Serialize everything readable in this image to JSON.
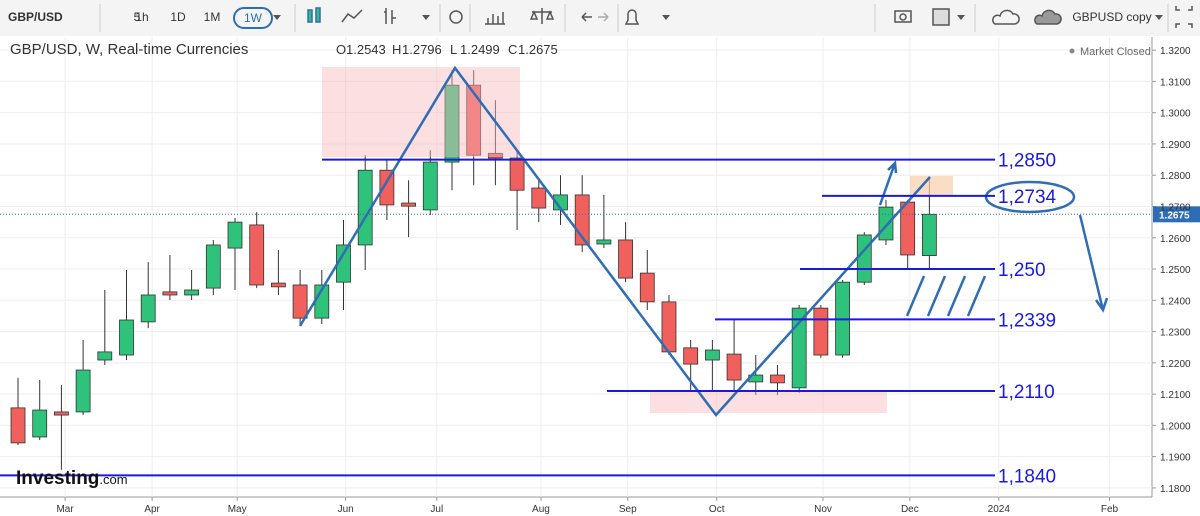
{
  "toolbar": {
    "symbol": "GBP/USD",
    "intervals": [
      "5",
      "1h",
      "1D",
      "1M",
      "1W"
    ],
    "copy": "GBPUSD copy"
  },
  "chart_data": {
    "type": "candlestick",
    "title": "GBP/USD, W, Real-time Currencies",
    "ohlc_labels": [
      "O",
      "H",
      "L",
      "C"
    ],
    "status": "Market Closed",
    "logo": [
      "Investing",
      ".com"
    ],
    "up_color": "#2fc27a",
    "down_color": "#f0605c",
    "x": [
      0,
      1,
      2,
      3,
      4,
      5,
      6,
      7,
      8,
      9,
      10,
      11,
      12,
      13,
      14,
      15,
      16,
      17,
      18,
      19,
      20,
      21,
      22,
      23,
      24,
      25,
      26,
      27,
      28,
      29,
      30,
      31,
      32,
      33,
      34,
      35,
      36,
      37,
      38,
      39,
      40,
      41,
      42
    ],
    "open": [
      1.2056,
      1.1963,
      1.2043,
      1.2043,
      1.2209,
      1.2225,
      1.2331,
      1.2427,
      1.2417,
      1.2439,
      1.2567,
      1.2641,
      1.2455,
      1.2449,
      1.2343,
      1.2458,
      1.2577,
      1.2816,
      1.2711,
      1.2689,
      1.2842,
      1.3088,
      1.287,
      1.2855,
      1.2759,
      1.2689,
      1.2737,
      1.258,
      1.2593,
      1.2487,
      1.2395,
      1.2248,
      1.2209,
      1.2228,
      1.2139,
      1.2161,
      1.212,
      1.2375,
      1.2225,
      1.2458,
      1.2593,
      1.2714,
      1.2543
    ],
    "high": [
      1.2152,
      1.2145,
      1.2129,
      1.2273,
      1.2433,
      1.2497,
      1.2522,
      1.2545,
      1.2497,
      1.2593,
      1.2663,
      1.2682,
      1.2561,
      1.2497,
      1.2497,
      1.2657,
      1.2864,
      1.2848,
      1.2784,
      1.288,
      1.3136,
      1.3136,
      1.304,
      1.288,
      1.2784,
      1.28,
      1.28,
      1.2737,
      1.265,
      1.2561,
      1.2417,
      1.2273,
      1.2273,
      1.2337,
      1.2225,
      1.2193,
      1.2385,
      1.2385,
      1.2465,
      1.2618,
      1.2721,
      1.2721,
      1.2796
    ],
    "low": [
      1.1937,
      1.1953,
      1.1858,
      1.2033,
      1.2193,
      1.2209,
      1.2311,
      1.2401,
      1.2401,
      1.2417,
      1.2433,
      1.2439,
      1.2417,
      1.2324,
      1.2324,
      1.2369,
      1.2497,
      1.2657,
      1.2602,
      1.2673,
      1.2752,
      1.2768,
      1.2768,
      1.2625,
      1.265,
      1.2641,
      1.2554,
      1.2567,
      1.2458,
      1.2369,
      1.2225,
      1.2113,
      1.2113,
      1.2113,
      1.2097,
      1.2097,
      1.2104,
      1.2216,
      1.2216,
      1.2449,
      1.2577,
      1.2503,
      1.2499
    ],
    "close": [
      1.1944,
      1.2049,
      1.2033,
      1.2177,
      1.2235,
      1.2337,
      1.2417,
      1.2417,
      1.2433,
      1.2577,
      1.265,
      1.2449,
      1.2443,
      1.2343,
      1.2449,
      1.2577,
      1.2816,
      1.2705,
      1.2701,
      1.2842,
      1.3088,
      1.2864,
      1.2855,
      1.2752,
      1.2695,
      1.2737,
      1.2577,
      1.2593,
      1.2471,
      1.2395,
      1.2235,
      1.2196,
      1.2241,
      1.2145,
      1.2161,
      1.2136,
      1.2375,
      1.2225,
      1.2458,
      1.2609,
      1.2698,
      1.2545,
      1.2675
    ],
    "xlim": [
      -0.83,
      52.26
    ],
    "xticks": [
      {
        "value": 2.17,
        "label": "Mar"
      },
      {
        "value": 6.18,
        "label": "Apr"
      },
      {
        "value": 10.1,
        "label": "May"
      },
      {
        "value": 15.1,
        "label": "Jun"
      },
      {
        "value": 19.3,
        "label": "Jul"
      },
      {
        "value": 24.1,
        "label": "Aug"
      },
      {
        "value": 28.1,
        "label": "Sep"
      },
      {
        "value": 32.2,
        "label": "Oct"
      },
      {
        "value": 37.1,
        "label": "Nov"
      },
      {
        "value": 41.1,
        "label": "Dec"
      },
      {
        "value": 45.2,
        "label": "2024"
      },
      {
        "value": 50.3,
        "label": "Feb"
      }
    ],
    "ylim": [
      1.1771,
      1.3242
    ],
    "yticks": [
      {
        "value": 1.18,
        "label": "1.1800"
      },
      {
        "value": 1.19,
        "label": "1.1900"
      },
      {
        "value": 1.2,
        "label": "1.2000"
      },
      {
        "value": 1.21,
        "label": "1.2100"
      },
      {
        "value": 1.22,
        "label": "1.2200"
      },
      {
        "value": 1.23,
        "label": "1.2300"
      },
      {
        "value": 1.24,
        "label": "1.2400"
      },
      {
        "value": 1.25,
        "label": "1.2500"
      },
      {
        "value": 1.26,
        "label": "1.2600"
      },
      {
        "value": 1.27,
        "label": "1.2700"
      },
      {
        "value": 1.28,
        "label": "1.2800"
      },
      {
        "value": 1.29,
        "label": "1.2900"
      },
      {
        "value": 1.3,
        "label": "1.3000"
      },
      {
        "value": 1.31,
        "label": "1.3100"
      },
      {
        "value": 1.32,
        "label": "1.3200"
      }
    ],
    "levels": [
      {
        "value": 1.285,
        "label": "1,2850"
      },
      {
        "value": 1.2734,
        "label": "1,2734"
      },
      {
        "value": 1.25,
        "label": "1,250"
      },
      {
        "value": 1.2339,
        "label": "1,2339"
      },
      {
        "value": 1.211,
        "label": "1,2110"
      },
      {
        "value": 1.184,
        "label": "1,1840"
      }
    ],
    "level_color": "#1a1adf"
  }
}
